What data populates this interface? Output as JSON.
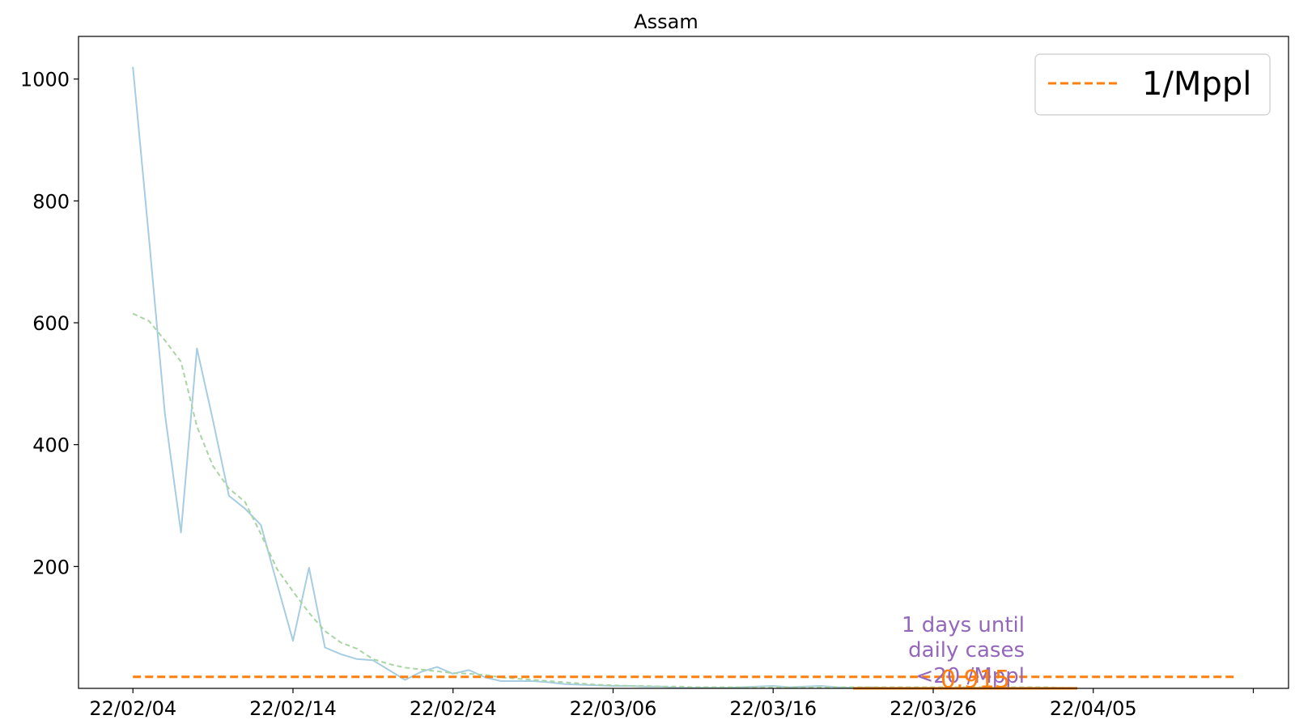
{
  "chart_data": {
    "type": "line",
    "title": "Assam",
    "xlabel": "",
    "ylabel": "",
    "x_tick_labels": [
      "22/02/04",
      "22/02/14",
      "22/02/24",
      "22/03/06",
      "22/03/16",
      "22/03/26",
      "22/04/05",
      ""
    ],
    "y_tick_labels": [
      "200",
      "400",
      "600",
      "800",
      "1000"
    ],
    "xlim": [
      -3.4,
      72.2
    ],
    "ylim": [
      0,
      1070
    ],
    "x_ticks": [
      0,
      10,
      20,
      30,
      40,
      50,
      60,
      70
    ],
    "y_ticks": [
      200,
      400,
      600,
      800,
      1000
    ],
    "series": [
      {
        "style": "solid",
        "color": "#a6cde2",
        "x": [
          0,
          1,
          2,
          3,
          4,
          5,
          6,
          7,
          8,
          9,
          10,
          11,
          12,
          13,
          14,
          15,
          16,
          17,
          18,
          19,
          20,
          21,
          22,
          23,
          24,
          25,
          26,
          27,
          28,
          29,
          30,
          31,
          32,
          33,
          34,
          35,
          36,
          37,
          38,
          39,
          40,
          41,
          42,
          43,
          44,
          45,
          46,
          47,
          48,
          49,
          50,
          51,
          52,
          53,
          54,
          55,
          56,
          57,
          58,
          59
        ],
        "values": [
          1020,
          740,
          450,
          256,
          558,
          440,
          316,
          295,
          268,
          172,
          78,
          198,
          67,
          56,
          48,
          46,
          30,
          14,
          27,
          35,
          24,
          30,
          18,
          12,
          12,
          12,
          10,
          7,
          6,
          5,
          4,
          4,
          3,
          3,
          1,
          1,
          1,
          1,
          2,
          3,
          4,
          2,
          3,
          4,
          2,
          1,
          2,
          1,
          1,
          1,
          1,
          1,
          1,
          1,
          1,
          1,
          1,
          1,
          1,
          1
        ]
      },
      {
        "style": "dashed",
        "color": "#a8d5a2",
        "x": [
          0,
          1,
          2,
          3,
          4,
          5,
          6,
          7,
          8,
          9,
          10,
          11,
          12,
          13,
          14,
          15,
          16,
          17,
          18,
          19,
          20,
          21,
          22,
          23,
          24,
          25,
          26,
          27,
          28,
          29,
          30,
          31,
          32,
          33,
          34,
          35,
          36,
          37,
          38,
          39,
          40,
          41,
          42,
          43,
          44,
          45,
          46,
          47,
          48,
          49,
          50,
          51,
          52,
          53,
          54,
          55,
          56,
          57,
          58,
          59
        ],
        "values": [
          615,
          603,
          571,
          536,
          430,
          365,
          328,
          306,
          253,
          196,
          159,
          124,
          94,
          75,
          65,
          48,
          40,
          34,
          31,
          28,
          25,
          24,
          22,
          18,
          16,
          14,
          12,
          10,
          8,
          6,
          5,
          4,
          4,
          3,
          3,
          2,
          2,
          2,
          2,
          2,
          2,
          2,
          2,
          2,
          2,
          2,
          2,
          2,
          2,
          2,
          2,
          2,
          2,
          2,
          2,
          2,
          2,
          2,
          1,
          1
        ]
      },
      {
        "name": "1/Mppl",
        "style": "dashed",
        "color": "#ff7f0e",
        "x": [
          0,
          69
        ],
        "values": [
          19,
          19
        ]
      },
      {
        "style": "solid",
        "color": "#ff7f0e",
        "x": [
          45,
          59
        ],
        "values": [
          0,
          0
        ]
      }
    ],
    "annotations": {
      "days_text_lines": [
        "1 days until",
        "daily cases",
        "<20 /Mppl"
      ],
      "value_text": "0.915"
    },
    "legend": {
      "placement": "top-right",
      "entries": [
        "1/Mppl"
      ]
    },
    "grid": false
  }
}
